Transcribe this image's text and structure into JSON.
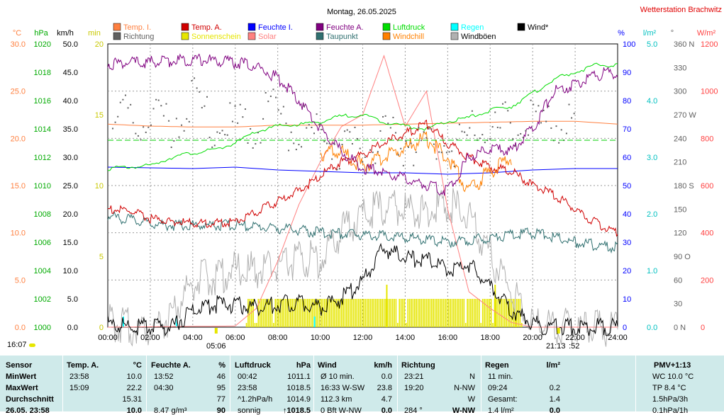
{
  "title": "Montag, 26.05.2025",
  "station": "Wetterstation Brachwitz",
  "legend": [
    {
      "label": "Temp. I.",
      "color": "#ff8040"
    },
    {
      "label": "Temp. A.",
      "color": "#d00000"
    },
    {
      "label": "Feuchte I.",
      "color": "#0000ff"
    },
    {
      "label": "Feuchte A.",
      "color": "#800080"
    },
    {
      "label": "Luftdruck",
      "color": "#00dd00"
    },
    {
      "label": "Regen",
      "color": "#00ffff"
    },
    {
      "label": "Wind*",
      "color": "#000000"
    },
    {
      "label": "Richtung",
      "color": "#606060"
    },
    {
      "label": "Sonnenschein",
      "color": "#e6e600"
    },
    {
      "label": "Solar",
      "color": "#ff8080"
    },
    {
      "label": "Taupunkt",
      "color": "#307070"
    },
    {
      "label": "Windchill",
      "color": "#ff8000"
    },
    {
      "label": "Windböen",
      "color": "#b0b0b0"
    }
  ],
  "axes": {
    "temp": {
      "unit": "°C",
      "color": "#ff8040",
      "ticks": [
        "30.0",
        "25.0",
        "20.0",
        "15.0",
        "10.0",
        "5.0",
        "0.0"
      ]
    },
    "pressure": {
      "unit": "hPa",
      "color": "#00aa00",
      "ticks": [
        "1020",
        "1018",
        "1016",
        "1014",
        "1012",
        "1010",
        "1008",
        "1006",
        "1004",
        "1002",
        "1000"
      ]
    },
    "wind": {
      "unit": "km/h",
      "color": "#000000",
      "ticks": [
        "50.0",
        "45.0",
        "40.0",
        "35.0",
        "30.0",
        "25.0",
        "20.0",
        "15.0",
        "10.0",
        "5.0",
        "0.0"
      ]
    },
    "sun": {
      "unit": "min",
      "color": "#c8c800",
      "ticks": [
        "20",
        "15",
        "10",
        "5",
        "0"
      ]
    },
    "humidity": {
      "unit": "%",
      "color": "#0000ff",
      "ticks": [
        "100",
        "90",
        "80",
        "70",
        "60",
        "50",
        "40",
        "30",
        "20",
        "10",
        "0"
      ]
    },
    "rain": {
      "unit": "l/m²",
      "color": "#00cccc",
      "ticks": [
        "5.0",
        "4.0",
        "3.0",
        "2.0",
        "1.0",
        "0.0"
      ]
    },
    "direction": {
      "unit": "°",
      "color": "#606060",
      "ticks": [
        "360 N",
        "330",
        "300",
        "270 W",
        "240",
        "210",
        "180 S",
        "150",
        "120",
        "90 O",
        "60",
        "30",
        "0 N"
      ]
    },
    "solar": {
      "unit": "W/m²",
      "color": "#ff4040",
      "ticks": [
        "1200",
        "1000",
        "800",
        "600",
        "400",
        "200",
        "0"
      ]
    },
    "x": {
      "ticks": [
        "00:00",
        "02:00",
        "04:00",
        "06:00",
        "08:00",
        "10:00",
        "12:00",
        "14:00",
        "16:00",
        "18:00",
        "20:00",
        "22:00",
        "24:00"
      ]
    }
  },
  "markers": {
    "sunrise": "05:06",
    "sunset": "21:13",
    "sunset_suffix": ":52",
    "day_length": "16:07"
  },
  "chart_data": {
    "type": "line",
    "x_range": [
      "00:00",
      "24:00"
    ],
    "series": [
      {
        "name": "Temp. I.",
        "axis": "temp",
        "x": [
          0,
          2,
          4,
          6,
          8,
          10,
          12,
          14,
          16,
          18,
          20,
          22,
          24
        ],
        "values": [
          21.5,
          21.3,
          21.2,
          21.2,
          21.4,
          21.4,
          21.4,
          21.5,
          21.6,
          21.7,
          21.8,
          21.8,
          21.5
        ]
      },
      {
        "name": "Temp. A.",
        "axis": "temp",
        "x": [
          0,
          1,
          2,
          3,
          4,
          5,
          6,
          7,
          8,
          9,
          10,
          11,
          12,
          13,
          14,
          15,
          16,
          17,
          18,
          19,
          20,
          21,
          22,
          23,
          24
        ],
        "values": [
          12.5,
          12.3,
          11.5,
          11.2,
          11.0,
          11.0,
          11.2,
          12.2,
          13.3,
          14.5,
          16.0,
          17.5,
          18.2,
          19.5,
          20.5,
          21.5,
          19.5,
          18.0,
          17.0,
          16.5,
          15.0,
          14.0,
          12.5,
          11.0,
          10.0
        ]
      },
      {
        "name": "Feuchte I.",
        "axis": "humidity",
        "x": [
          0,
          4,
          6,
          8,
          10,
          12,
          14,
          16,
          18,
          20,
          22,
          24
        ],
        "values": [
          56.5,
          56.0,
          56.5,
          55.5,
          55.0,
          54.5,
          54.5,
          54.0,
          54.5,
          55.5,
          56.0,
          56.0
        ]
      },
      {
        "name": "Feuchte A.",
        "axis": "humidity",
        "x": [
          0,
          2,
          4,
          6,
          7,
          8,
          9,
          10,
          11,
          12,
          13,
          14,
          15,
          16,
          17,
          18,
          19,
          20,
          21,
          22,
          23,
          24
        ],
        "values": [
          93,
          93.5,
          94.5,
          93.5,
          92,
          88,
          80,
          70,
          62,
          56,
          55,
          52,
          50,
          48,
          60,
          63,
          62,
          70,
          83,
          86,
          89,
          90
        ]
      },
      {
        "name": "Luftdruck",
        "axis": "pressure",
        "x": [
          0,
          2,
          3,
          4,
          5,
          6,
          7,
          8,
          9,
          10,
          11,
          12,
          13,
          14,
          15,
          16,
          17,
          18,
          19,
          20,
          21,
          22,
          23,
          24
        ],
        "values": [
          1011.2,
          1011.4,
          1012.0,
          1012.3,
          1012.5,
          1013.0,
          1013.8,
          1014.2,
          1014.3,
          1014.5,
          1014.9,
          1015.0,
          1014.5,
          1014.2,
          1014.0,
          1014.5,
          1014.8,
          1015.3,
          1015.6,
          1016.5,
          1017.5,
          1018.0,
          1018.5,
          1018.5
        ]
      },
      {
        "name": "Taupunkt",
        "axis": "temp",
        "x": [
          0,
          2,
          3,
          4,
          6,
          8,
          10,
          12,
          14,
          16,
          18,
          20,
          22,
          24
        ],
        "values": [
          11.8,
          11.0,
          10.8,
          10.8,
          10.8,
          10.5,
          10.0,
          9.8,
          9.5,
          9.0,
          9.5,
          10.0,
          9.0,
          8.4
        ]
      },
      {
        "name": "Windchill",
        "axis": "temp",
        "x": [
          10,
          11,
          12,
          13,
          14,
          15,
          16,
          17,
          18,
          19
        ],
        "values": [
          18.5,
          18.5,
          17.0,
          18.0,
          19.0,
          20.0,
          18.0,
          14.5,
          16.5,
          18.0
        ]
      },
      {
        "name": "Solar",
        "axis": "solar",
        "x": [
          0,
          6,
          7,
          8,
          9,
          10,
          11,
          12,
          13,
          14,
          15,
          16,
          17,
          18,
          19,
          20,
          21,
          24
        ],
        "values": [
          0,
          5,
          80,
          280,
          520,
          700,
          850,
          900,
          1150,
          850,
          1000,
          500,
          150,
          80,
          20,
          0,
          0,
          0
        ]
      },
      {
        "name": "Wind*",
        "axis": "wind",
        "x": [
          0,
          1,
          2,
          3,
          4,
          5,
          6,
          7,
          8,
          9,
          10,
          11,
          12,
          13,
          14,
          15,
          16,
          17,
          18,
          19,
          20,
          21,
          22,
          23,
          24
        ],
        "values": [
          0.5,
          0,
          0,
          0,
          3,
          4,
          4,
          3.5,
          4,
          4.5,
          3.5,
          5,
          8,
          14,
          12,
          12,
          10,
          11,
          7,
          3,
          0.5,
          0,
          0,
          0,
          0
        ]
      },
      {
        "name": "Windböen",
        "axis": "wind",
        "x": [
          0,
          1,
          2,
          3,
          4,
          5,
          6,
          7,
          8,
          9,
          10,
          11,
          12,
          13,
          14,
          15,
          16,
          17,
          18,
          19,
          20,
          21,
          22,
          23,
          24
        ],
        "values": [
          1,
          0,
          0,
          2,
          8,
          9,
          10,
          10,
          11,
          12,
          12,
          17,
          20,
          21,
          21,
          20,
          22,
          19,
          13,
          6,
          1,
          0,
          0,
          0,
          0
        ]
      },
      {
        "name": "Richtung",
        "axis": "direction",
        "x": [
          0,
          1,
          3,
          4,
          5,
          6,
          7,
          8,
          9,
          10,
          11,
          12,
          13,
          14,
          15,
          16,
          17,
          18,
          19,
          20,
          21,
          22
        ],
        "values": [
          261,
          261,
          263,
          285,
          250,
          255,
          265,
          270,
          250,
          240,
          230,
          225,
          235,
          240,
          230,
          235,
          245,
          250,
          255,
          255,
          260,
          260
        ]
      },
      {
        "name": "Sonnenschein",
        "axis": "sun",
        "x": [
          6.5,
          19.5
        ],
        "values": [
          2,
          2
        ]
      },
      {
        "name": "Regen",
        "axis": "rain",
        "x": [
          0.7,
          3.2,
          9.7
        ],
        "values": [
          0,
          0,
          0
        ]
      }
    ]
  },
  "table": {
    "columns": [
      {
        "header": "Sensor",
        "unit": ""
      },
      {
        "header": "Temp. A.",
        "unit": "°C"
      },
      {
        "header": "Feuchte A.",
        "unit": "%"
      },
      {
        "header": "Luftdruck",
        "unit": "hPa"
      },
      {
        "header": "Wind",
        "unit": "km/h"
      },
      {
        "header": "Richtung",
        "unit": ""
      },
      {
        "header": "Regen",
        "unit": "l/m²"
      },
      {
        "header": "PMV+1:13",
        "unit": ""
      }
    ],
    "rows": [
      {
        "label": "MinWert",
        "cells": [
          [
            "23:58",
            "10.0"
          ],
          [
            "13:52",
            "46"
          ],
          [
            "00:42",
            "1011.1"
          ],
          [
            "Ø 10 min.",
            "0.0"
          ],
          [
            "23:21",
            "N"
          ],
          [
            "11 min.",
            ""
          ],
          [
            "WC 10.0 °C",
            ""
          ]
        ]
      },
      {
        "label": "MaxWert",
        "cells": [
          [
            "15:09",
            "22.2"
          ],
          [
            "04:30",
            "95"
          ],
          [
            "23:58",
            "1018.5"
          ],
          [
            "16:33   W-SW",
            "23.8"
          ],
          [
            "19:20",
            "N-NW"
          ],
          [
            "09:24",
            "0.2"
          ],
          [
            "TP 8.4 °C",
            ""
          ]
        ]
      },
      {
        "label": "Durchschnitt",
        "cells": [
          [
            "",
            "15.31"
          ],
          [
            "",
            "77"
          ],
          [
            "^1.2hPa/h",
            "1014.9"
          ],
          [
            "112.3 km",
            "4.7"
          ],
          [
            "",
            "W"
          ],
          [
            "Gesamt:",
            "1.4"
          ],
          [
            "1.5hPa/3h",
            ""
          ]
        ]
      },
      {
        "label": "26.05. 23:58",
        "cells": [
          [
            "",
            "10.0"
          ],
          [
            "8.47 g/m³",
            "90"
          ],
          [
            "sonnig",
            "↑1018.5"
          ],
          [
            "0 Bft W-NW",
            "0.0"
          ],
          [
            "284 °",
            "W-NW"
          ],
          [
            "1.4 l/m²",
            "0.0"
          ],
          [
            "0.1hPa/1h",
            ""
          ]
        ]
      }
    ]
  }
}
